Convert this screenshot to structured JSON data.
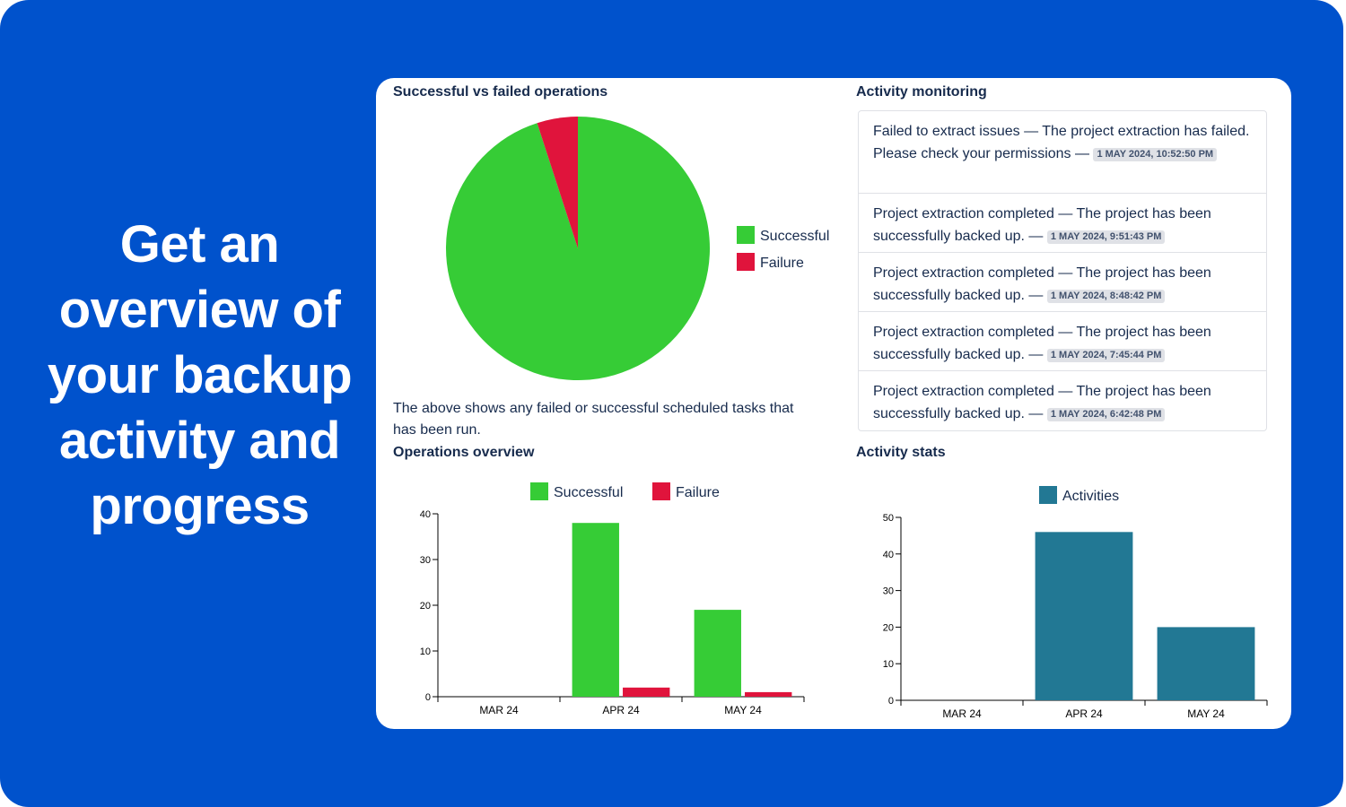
{
  "headline": "Get an overview of your backup activity and progress",
  "colors": {
    "background": "#0052cc",
    "successful": "#36cc36",
    "failure": "#e0143c",
    "activities": "#227894"
  },
  "pie_section": {
    "title": "Successful vs failed operations",
    "description": "The above shows any failed or successful scheduled tasks that has been run."
  },
  "activity_section": {
    "title": "Activity monitoring",
    "items": [
      {
        "text": "Failed to extract issues — The project extraction has failed. Please check your permissions —",
        "timestamp": "1 MAY 2024, 10:52:50 PM"
      },
      {
        "text": "Project extraction completed — The project has been successfully backed up. —",
        "timestamp": "1 MAY 2024, 9:51:43 PM"
      },
      {
        "text": "Project extraction completed — The project has been successfully backed up. —",
        "timestamp": "1 MAY 2024, 8:48:42 PM"
      },
      {
        "text": "Project extraction completed — The project has been successfully backed up. —",
        "timestamp": "1 MAY 2024, 7:45:44 PM"
      },
      {
        "text": "Project extraction completed — The project has been successfully backed up. —",
        "timestamp": "1 MAY 2024, 6:42:48 PM"
      }
    ]
  },
  "ops_section": {
    "title": "Operations overview"
  },
  "stats_section": {
    "title": "Activity stats"
  },
  "chart_data": [
    {
      "type": "pie",
      "title": "Successful vs failed operations",
      "labels": [
        "Successful",
        "Failure"
      ],
      "values": [
        95,
        5
      ],
      "legend": "right"
    },
    {
      "type": "bar",
      "title": "Operations overview",
      "categories": [
        "MAR 24",
        "APR 24",
        "MAY 24"
      ],
      "series": [
        {
          "name": "Successful",
          "values": [
            0,
            38,
            19
          ]
        },
        {
          "name": "Failure",
          "values": [
            0,
            2,
            1
          ]
        }
      ],
      "ylim": [
        0,
        40
      ],
      "yticks": [
        0,
        10,
        20,
        30,
        40
      ],
      "legend": "top-center"
    },
    {
      "type": "bar",
      "title": "Activity stats",
      "categories": [
        "MAR 24",
        "APR 24",
        "MAY 24"
      ],
      "series": [
        {
          "name": "Activities",
          "values": [
            0,
            46,
            20
          ]
        }
      ],
      "ylim": [
        0,
        50
      ],
      "yticks": [
        0,
        10,
        20,
        30,
        40,
        50
      ],
      "legend": "top-center"
    }
  ]
}
